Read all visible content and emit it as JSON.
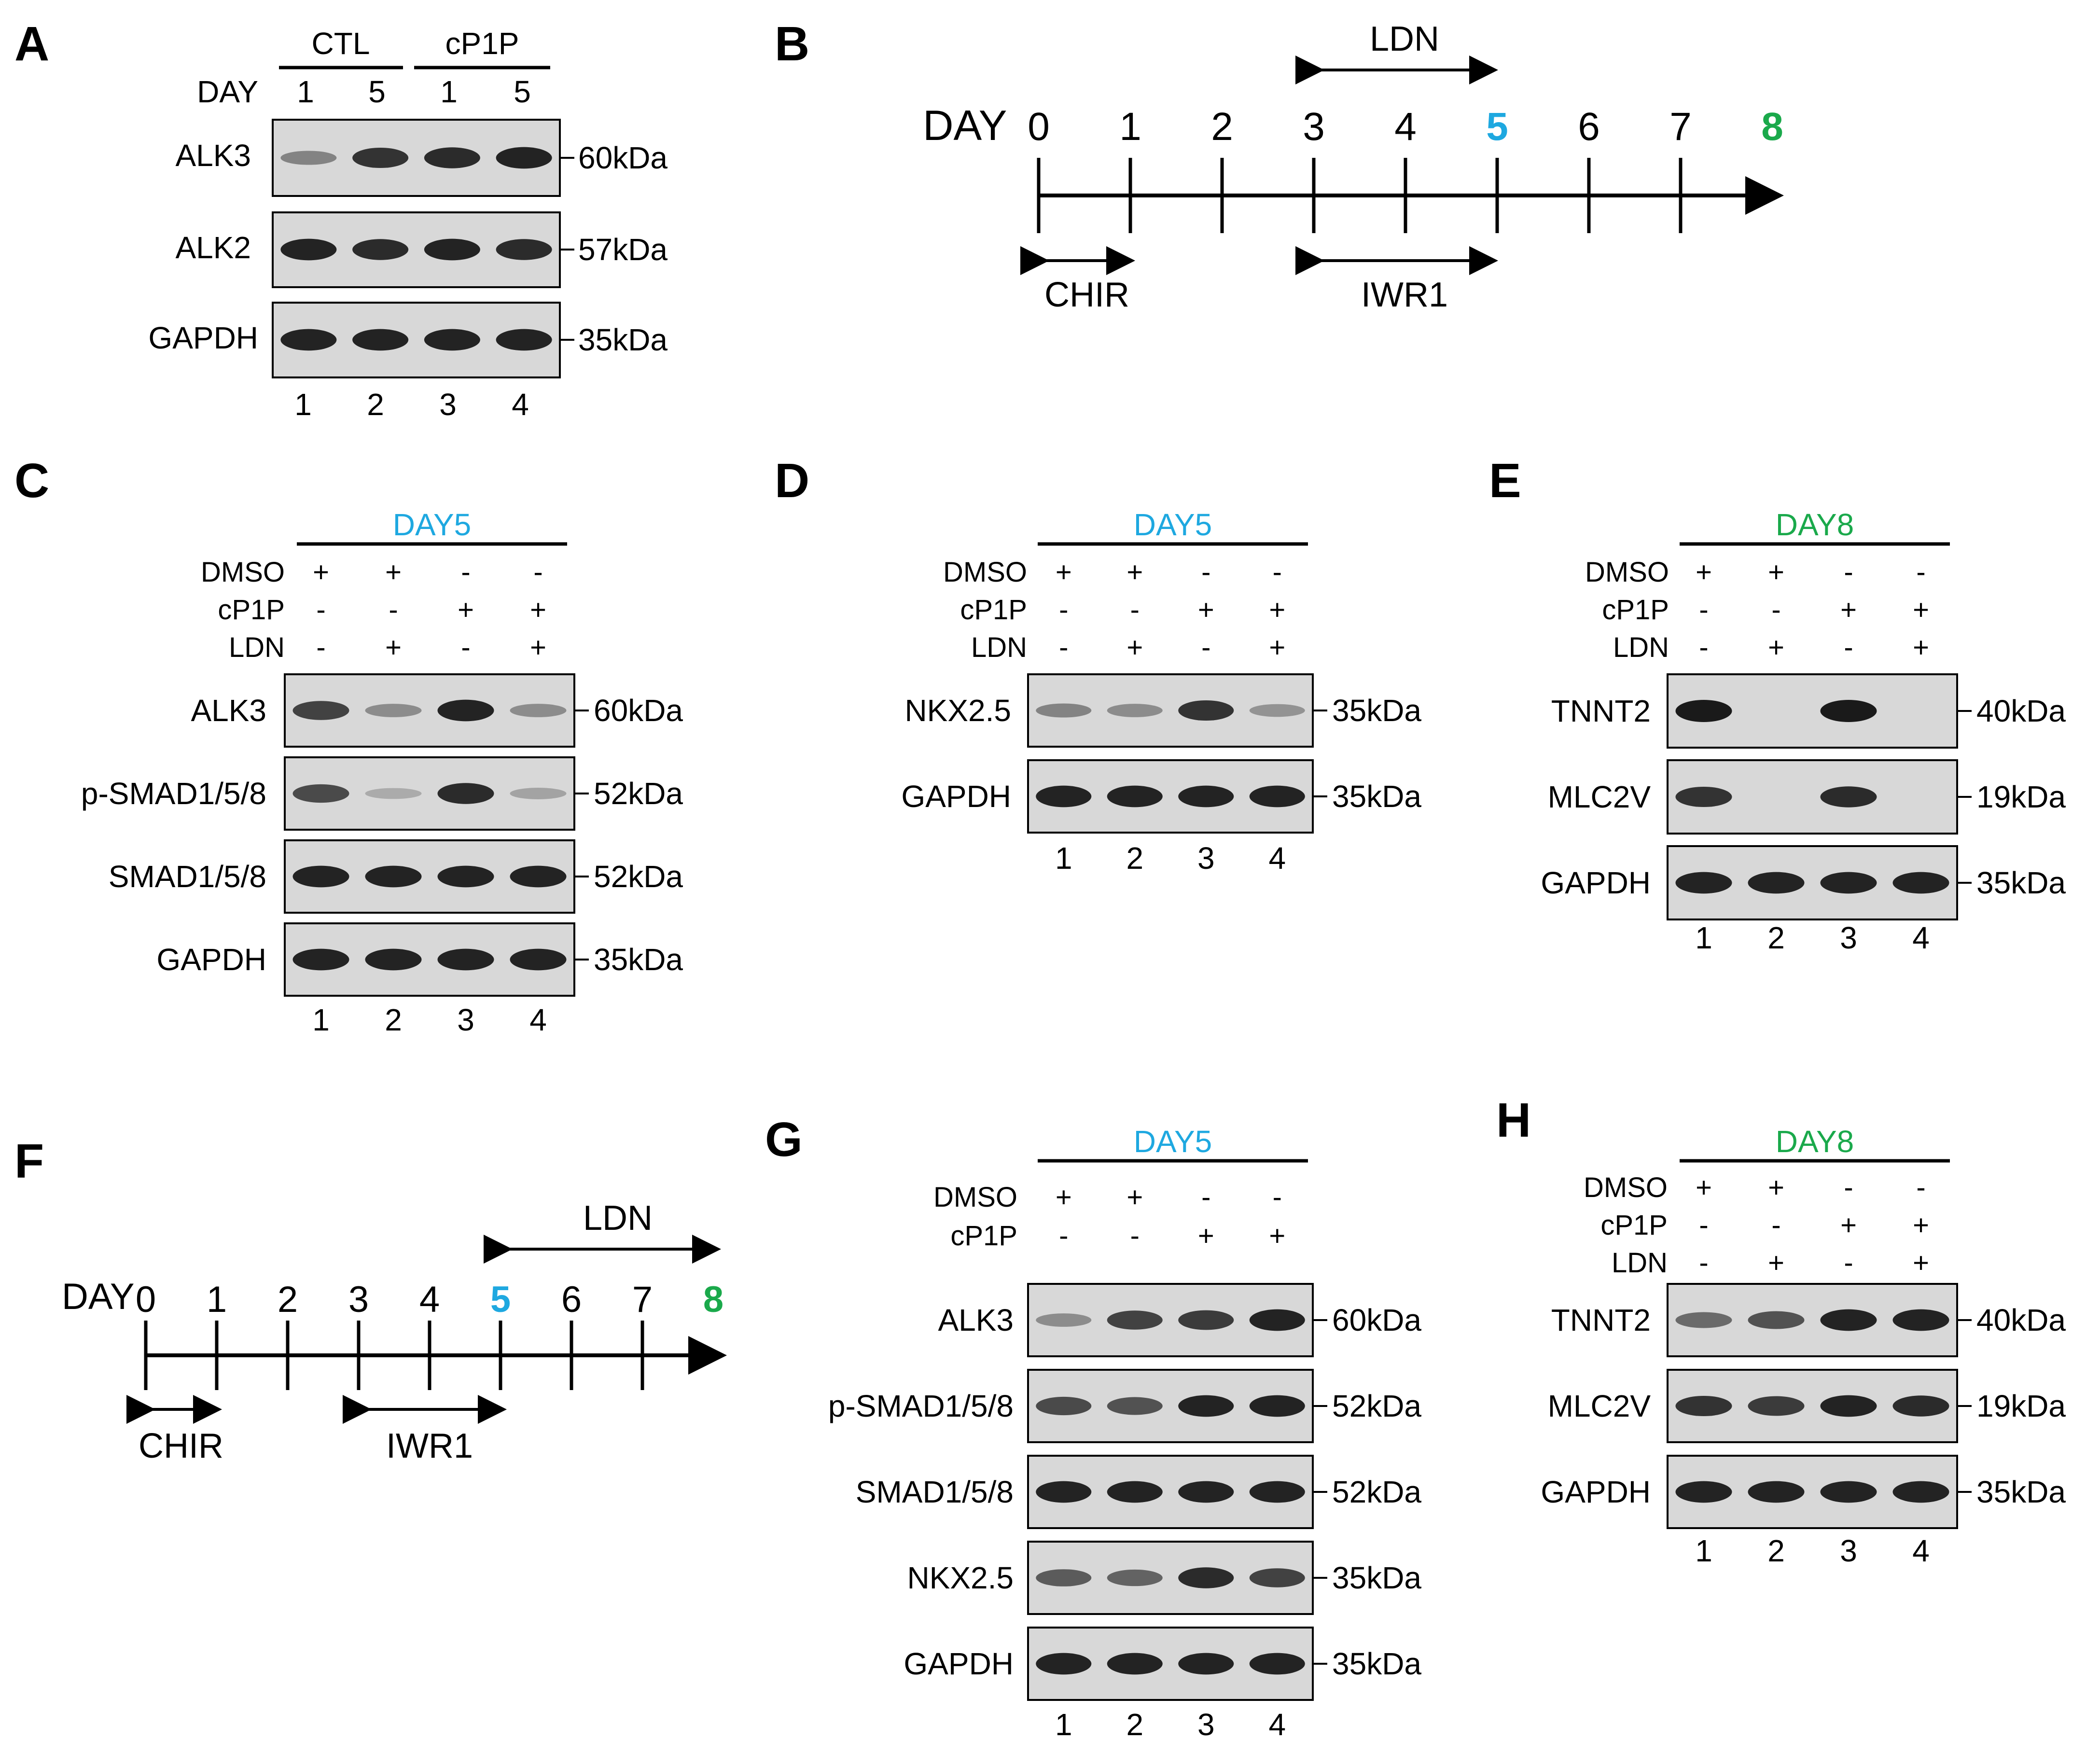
{
  "colors": {
    "day5": "#1ea8e0",
    "day8": "#1aa94b",
    "blot_bg": "#d8d8d8",
    "band": "#1a1a1a"
  },
  "panels": {
    "A": {
      "letter": "A",
      "groups": [
        "CTL",
        "cP1P"
      ],
      "day_label": "DAY",
      "days": [
        "1",
        "5",
        "1",
        "5"
      ],
      "blots": [
        {
          "name": "ALK3",
          "kda": "60kDa",
          "intensity": [
            0.35,
            0.85,
            0.9,
            0.95
          ]
        },
        {
          "name": "ALK2",
          "kda": "57kDa",
          "intensity": [
            0.95,
            0.9,
            0.95,
            0.9
          ]
        },
        {
          "name": "GAPDH",
          "kda": "35kDa",
          "intensity": [
            0.95,
            0.95,
            0.95,
            0.95
          ]
        }
      ],
      "lanes": [
        "1",
        "2",
        "3",
        "4"
      ]
    },
    "B": {
      "letter": "B",
      "day_label": "DAY",
      "ticks": [
        "0",
        "1",
        "2",
        "3",
        "4",
        "5",
        "6",
        "7",
        "8"
      ],
      "drugs": {
        "top": "LDN",
        "left": "CHIR",
        "right": "IWR1"
      }
    },
    "C": {
      "letter": "C",
      "header": "DAY5",
      "treatments": [
        {
          "name": "DMSO",
          "signs": [
            "+",
            "+",
            "-",
            "-"
          ]
        },
        {
          "name": "cP1P",
          "signs": [
            "-",
            "-",
            "+",
            "+"
          ]
        },
        {
          "name": "LDN",
          "signs": [
            "-",
            "+",
            "-",
            "+"
          ]
        }
      ],
      "blots": [
        {
          "name": "ALK3",
          "kda": "60kDa",
          "intensity": [
            0.75,
            0.3,
            0.95,
            0.3
          ]
        },
        {
          "name": "p-SMAD1/5/8",
          "kda": "52kDa",
          "intensity": [
            0.7,
            0.1,
            0.9,
            0.15
          ]
        },
        {
          "name": "SMAD1/5/8",
          "kda": "52kDa",
          "intensity": [
            0.95,
            0.95,
            0.95,
            0.95
          ]
        },
        {
          "name": "GAPDH",
          "kda": "35kDa",
          "intensity": [
            0.95,
            0.95,
            0.95,
            0.95
          ]
        }
      ],
      "lanes": [
        "1",
        "2",
        "3",
        "4"
      ]
    },
    "D": {
      "letter": "D",
      "header": "DAY5",
      "treatments": [
        {
          "name": "DMSO",
          "signs": [
            "+",
            "+",
            "-",
            "-"
          ]
        },
        {
          "name": "cP1P",
          "signs": [
            "-",
            "-",
            "+",
            "+"
          ]
        },
        {
          "name": "LDN",
          "signs": [
            "-",
            "+",
            "-",
            "+"
          ]
        }
      ],
      "blots": [
        {
          "name": "NKX2.5",
          "kda": "35kDa",
          "intensity": [
            0.35,
            0.3,
            0.85,
            0.25
          ]
        },
        {
          "name": "GAPDH",
          "kda": "35kDa",
          "intensity": [
            0.95,
            0.95,
            0.95,
            0.95
          ]
        }
      ],
      "lanes": [
        "1",
        "2",
        "3",
        "4"
      ]
    },
    "E": {
      "letter": "E",
      "header": "DAY8",
      "treatments": [
        {
          "name": "DMSO",
          "signs": [
            "+",
            "+",
            "-",
            "-"
          ]
        },
        {
          "name": "cP1P",
          "signs": [
            "-",
            "-",
            "+",
            "+"
          ]
        },
        {
          "name": "LDN",
          "signs": [
            "-",
            "+",
            "-",
            "+"
          ]
        }
      ],
      "blots": [
        {
          "name": "TNNT2",
          "kda": "40kDa",
          "intensity": [
            1.0,
            0.0,
            1.0,
            0.0
          ]
        },
        {
          "name": "MLC2V",
          "kda": "19kDa",
          "intensity": [
            0.85,
            0.0,
            0.9,
            0.0
          ]
        },
        {
          "name": "GAPDH",
          "kda": "35kDa",
          "intensity": [
            0.95,
            0.95,
            0.95,
            0.95
          ]
        }
      ],
      "lanes": [
        "1",
        "2",
        "3",
        "4"
      ]
    },
    "F": {
      "letter": "F",
      "day_label": "DAY",
      "ticks": [
        "0",
        "1",
        "2",
        "3",
        "4",
        "5",
        "6",
        "7",
        "8"
      ],
      "drugs": {
        "top": "LDN",
        "left": "CHIR",
        "right": "IWR1"
      }
    },
    "G": {
      "letter": "G",
      "header": "DAY5",
      "treatments": [
        {
          "name": "DMSO",
          "signs": [
            "+",
            "+",
            "-",
            "-"
          ]
        },
        {
          "name": "cP1P",
          "signs": [
            "-",
            "-",
            "+",
            "+"
          ]
        }
      ],
      "blots": [
        {
          "name": "ALK3",
          "kda": "60kDa",
          "intensity": [
            0.3,
            0.75,
            0.8,
            0.95
          ]
        },
        {
          "name": "p-SMAD1/5/8",
          "kda": "52kDa",
          "intensity": [
            0.7,
            0.65,
            0.95,
            0.95
          ]
        },
        {
          "name": "SMAD1/5/8",
          "kda": "52kDa",
          "intensity": [
            0.95,
            0.95,
            0.95,
            0.95
          ]
        },
        {
          "name": "NKX2.5",
          "kda": "35kDa",
          "intensity": [
            0.6,
            0.55,
            0.9,
            0.75
          ]
        },
        {
          "name": "GAPDH",
          "kda": "35kDa",
          "intensity": [
            0.95,
            0.95,
            0.95,
            0.95
          ]
        }
      ],
      "lanes": [
        "1",
        "2",
        "3",
        "4"
      ]
    },
    "H": {
      "letter": "H",
      "header": "DAY8",
      "treatments": [
        {
          "name": "DMSO",
          "signs": [
            "+",
            "+",
            "-",
            "-"
          ]
        },
        {
          "name": "cP1P",
          "signs": [
            "-",
            "-",
            "+",
            "+"
          ]
        },
        {
          "name": "LDN",
          "signs": [
            "-",
            "+",
            "-",
            "+"
          ]
        }
      ],
      "blots": [
        {
          "name": "TNNT2",
          "kda": "40kDa",
          "intensity": [
            0.5,
            0.65,
            0.95,
            0.95
          ]
        },
        {
          "name": "MLC2V",
          "kda": "19kDa",
          "intensity": [
            0.85,
            0.8,
            0.95,
            0.9
          ]
        },
        {
          "name": "GAPDH",
          "kda": "35kDa",
          "intensity": [
            0.95,
            0.95,
            0.95,
            0.95
          ]
        }
      ],
      "lanes": [
        "1",
        "2",
        "3",
        "4"
      ]
    }
  }
}
